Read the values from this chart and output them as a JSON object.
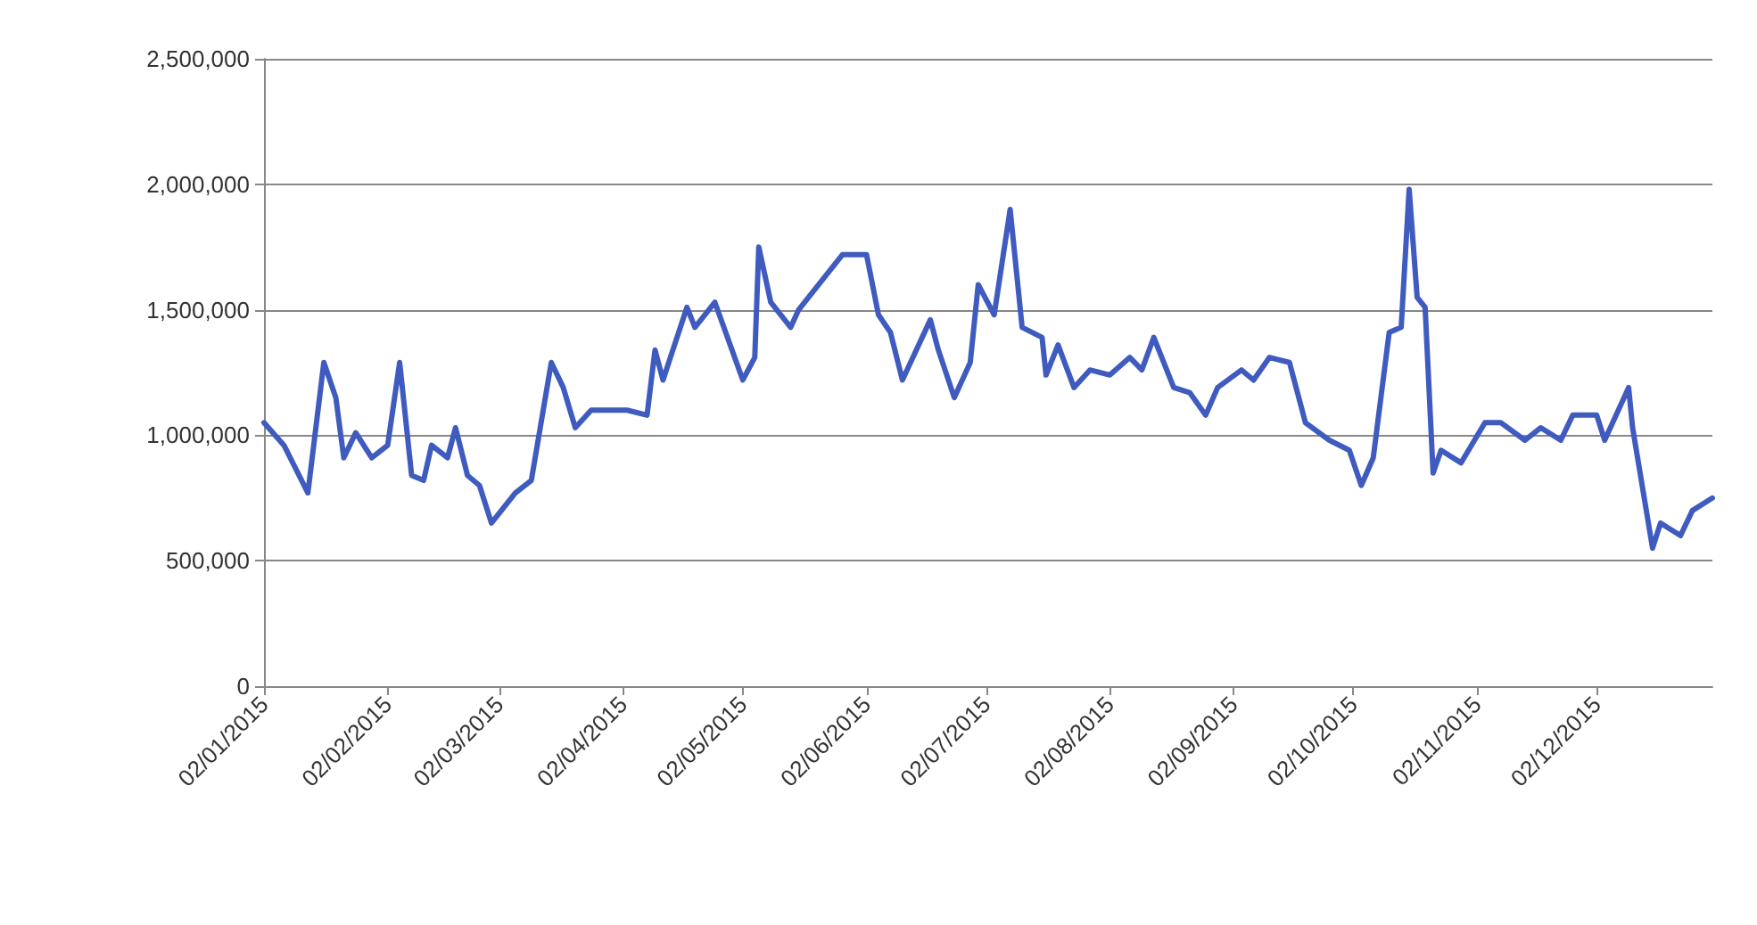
{
  "chart_data": {
    "type": "line",
    "x": [
      "2015-01-02",
      "2015-01-07",
      "2015-01-13",
      "2015-01-17",
      "2015-01-20",
      "2015-01-22",
      "2015-01-25",
      "2015-01-29",
      "2015-02-02",
      "2015-02-05",
      "2015-02-08",
      "2015-02-11",
      "2015-02-13",
      "2015-02-17",
      "2015-02-19",
      "2015-02-22",
      "2015-02-25",
      "2015-02-28",
      "2015-03-06",
      "2015-03-10",
      "2015-03-15",
      "2015-03-18",
      "2015-03-21",
      "2015-03-25",
      "2015-04-03",
      "2015-04-08",
      "2015-04-10",
      "2015-04-12",
      "2015-04-18",
      "2015-04-20",
      "2015-04-25",
      "2015-05-02",
      "2015-05-05",
      "2015-05-06",
      "2015-05-09",
      "2015-05-14",
      "2015-05-16",
      "2015-05-21",
      "2015-05-27",
      "2015-06-02",
      "2015-06-05",
      "2015-06-08",
      "2015-06-11",
      "2015-06-18",
      "2015-06-20",
      "2015-06-24",
      "2015-06-28",
      "2015-06-30",
      "2015-07-04",
      "2015-07-08",
      "2015-07-11",
      "2015-07-16",
      "2015-07-17",
      "2015-07-20",
      "2015-07-24",
      "2015-07-28",
      "2015-08-02",
      "2015-08-07",
      "2015-08-10",
      "2015-08-13",
      "2015-08-18",
      "2015-08-22",
      "2015-08-26",
      "2015-08-29",
      "2015-09-04",
      "2015-09-07",
      "2015-09-11",
      "2015-09-16",
      "2015-09-20",
      "2015-09-26",
      "2015-10-01",
      "2015-10-04",
      "2015-10-07",
      "2015-10-11",
      "2015-10-14",
      "2015-10-16",
      "2015-10-18",
      "2015-10-20",
      "2015-10-22",
      "2015-10-24",
      "2015-10-29",
      "2015-11-04",
      "2015-11-08",
      "2015-11-14",
      "2015-11-18",
      "2015-11-23",
      "2015-11-26",
      "2015-12-02",
      "2015-12-04",
      "2015-12-10",
      "2015-12-11",
      "2015-12-16",
      "2015-12-18",
      "2015-12-23",
      "2015-12-26",
      "2015-12-31"
    ],
    "series": [
      {
        "color": "#3f5bbf",
        "values": [
          1050000,
          960000,
          770000,
          1290000,
          1150000,
          910000,
          1010000,
          910000,
          960000,
          1290000,
          840000,
          820000,
          960000,
          910000,
          1030000,
          840000,
          800000,
          650000,
          770000,
          820000,
          1290000,
          1190000,
          1030000,
          1100000,
          1100000,
          1080000,
          1340000,
          1220000,
          1510000,
          1430000,
          1530000,
          1220000,
          1310000,
          1750000,
          1530000,
          1430000,
          1500000,
          1600000,
          1720000,
          1720000,
          1480000,
          1410000,
          1220000,
          1460000,
          1340000,
          1150000,
          1290000,
          1600000,
          1480000,
          1900000,
          1430000,
          1390000,
          1240000,
          1360000,
          1190000,
          1260000,
          1240000,
          1310000,
          1260000,
          1390000,
          1190000,
          1170000,
          1080000,
          1190000,
          1260000,
          1220000,
          1310000,
          1290000,
          1050000,
          980000,
          940000,
          800000,
          910000,
          1410000,
          1430000,
          1980000,
          1550000,
          1510000,
          850000,
          940000,
          890000,
          1050000,
          1050000,
          980000,
          1030000,
          980000,
          1080000,
          1080000,
          980000,
          1190000,
          1030000,
          550000,
          650000,
          600000,
          700000,
          750000
        ]
      }
    ],
    "xlim": [
      "2015-01-02",
      "2015-12-31"
    ],
    "xticks": [
      {
        "value": "2015-01-02",
        "label": "02/01/2015"
      },
      {
        "value": "2015-02-02",
        "label": "02/02/2015"
      },
      {
        "value": "2015-03-02",
        "label": "02/03/2015"
      },
      {
        "value": "2015-04-02",
        "label": "02/04/2015"
      },
      {
        "value": "2015-05-02",
        "label": "02/05/2015"
      },
      {
        "value": "2015-06-02",
        "label": "02/06/2015"
      },
      {
        "value": "2015-07-02",
        "label": "02/07/2015"
      },
      {
        "value": "2015-08-02",
        "label": "02/08/2015"
      },
      {
        "value": "2015-09-02",
        "label": "02/09/2015"
      },
      {
        "value": "2015-10-02",
        "label": "02/10/2015"
      },
      {
        "value": "2015-11-02",
        "label": "02/11/2015"
      },
      {
        "value": "2015-12-02",
        "label": "02/12/2015"
      }
    ],
    "ylim": [
      0,
      2500000
    ],
    "yticks": [
      0,
      {
        "value": 500000,
        "label": "500,000"
      },
      {
        "value": 1000000,
        "label": "1,000,000"
      },
      {
        "value": 1500000,
        "label": "1,500,000"
      },
      {
        "value": 2000000,
        "label": "2,000,000"
      },
      {
        "value": 2500000,
        "label": "2,500,000"
      }
    ],
    "grid": "y",
    "marker": "none",
    "line_style": "solid"
  }
}
